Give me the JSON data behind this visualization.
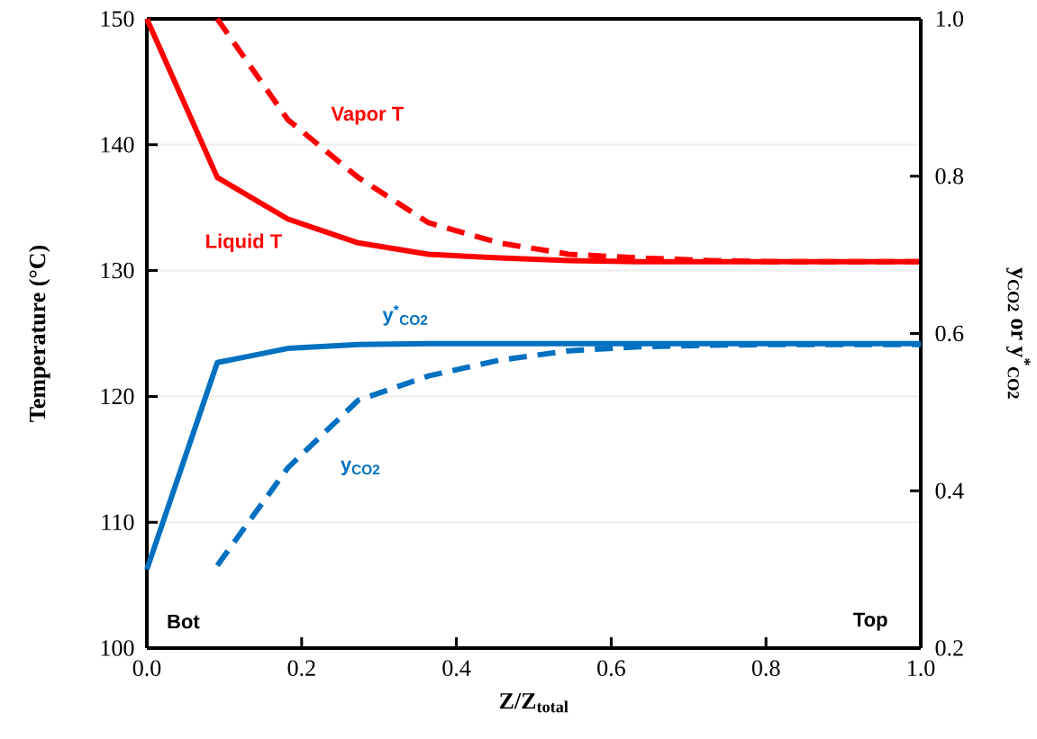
{
  "chart_data": {
    "type": "line",
    "xlabel": "Z/Z$_{total}$",
    "ylabel": "Temperature (°C)",
    "y2label": "y$_{CO2}$ or y$^{*}$$_{CO2}$",
    "x": [
      0,
      0.091,
      0.182,
      0.273,
      0.364,
      0.455,
      0.545,
      0.636,
      0.727,
      0.818,
      0.909,
      1.0
    ],
    "series": [
      {
        "name": "Liquid T",
        "color": "#ff0000",
        "line_style": "solid",
        "values": [
          150,
          137.4,
          134.1,
          132.2,
          131.3,
          131.0,
          130.8,
          130.7,
          130.7,
          130.7,
          130.7,
          130.7
        ]
      },
      {
        "name": "Vapor T",
        "color": "#ff0000",
        "line_style": "dashed",
        "values": [
          null,
          150,
          142.0,
          137.4,
          133.8,
          132.2,
          131.3,
          131.0,
          130.8,
          130.7,
          130.7,
          130.7
        ]
      },
      {
        "name": "y$^{*}$$_{CO2}$",
        "color": "#0070c0",
        "line_style": "solid",
        "axis": "y2",
        "values": [
          0.3,
          0.563,
          0.581,
          0.586,
          0.587,
          0.587,
          0.587,
          0.587,
          0.587,
          0.587,
          0.587,
          0.587
        ]
      },
      {
        "name": "y$_{CO2}$",
        "color": "#0070c0",
        "line_style": "dashed",
        "axis": "y2",
        "values": [
          null,
          0.305,
          0.429,
          0.515,
          0.546,
          0.566,
          0.578,
          0.583,
          0.585,
          0.586,
          0.586,
          0.586
        ]
      }
    ],
    "xlim": [
      0,
      1
    ],
    "ylim": [
      100,
      150
    ],
    "y2lim": [
      0.2,
      1.0
    ],
    "xticks": [
      {
        "value": 0,
        "label": "0.0"
      },
      0.2,
      0.4,
      0.6,
      0.8,
      {
        "value": 1,
        "label": "1.0"
      }
    ],
    "yticks": [
      100,
      110,
      120,
      130,
      140,
      150
    ],
    "y2ticks": [
      0.2,
      0.4,
      0.6,
      0.8,
      {
        "value": 1,
        "label": "1.0"
      }
    ],
    "grid": "y",
    "marker": "none",
    "annotations": [
      "Bot",
      "Top"
    ]
  }
}
